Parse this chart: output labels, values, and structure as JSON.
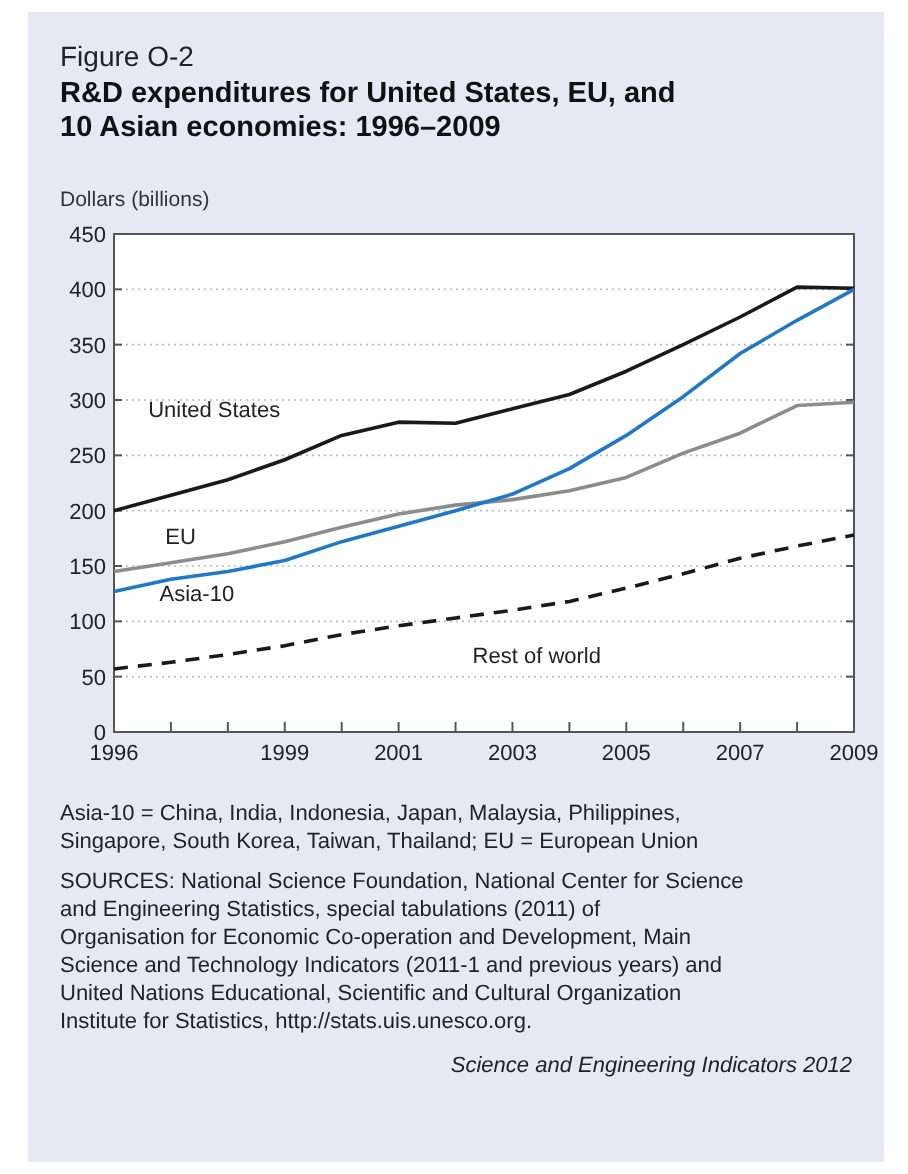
{
  "chart_data": {
    "type": "line",
    "title": "Figure O-2",
    "subtitle": "R&D expenditures for United States, EU, and 10 Asian economies: 1996–2009",
    "ylabel": "Dollars (billions)",
    "x": [
      1996,
      1997,
      1998,
      1999,
      2000,
      2001,
      2002,
      2003,
      2004,
      2005,
      2006,
      2007,
      2008,
      2009
    ],
    "xlim": [
      1996,
      2009
    ],
    "xticks": [
      1996,
      {
        "value": 1997,
        "label": null
      },
      {
        "value": 1998,
        "label": null
      },
      1999,
      {
        "value": 2000,
        "label": null
      },
      2001,
      {
        "value": 2002,
        "label": null
      },
      2003,
      {
        "value": 2004,
        "label": null
      },
      2005,
      {
        "value": 2006,
        "label": null
      },
      2007,
      {
        "value": 2008,
        "label": null
      },
      2009
    ],
    "ylim": [
      0,
      450
    ],
    "yticks": [
      0,
      50,
      100,
      150,
      200,
      250,
      300,
      350,
      400,
      450
    ],
    "grid": "y",
    "legend": false,
    "marker": "none",
    "series": [
      {
        "name": "United States",
        "color": "#1a1a1a",
        "values": [
          200,
          214,
          228,
          246,
          268,
          280,
          279,
          292,
          305,
          326,
          350,
          375,
          402,
          401
        ]
      },
      {
        "name": "EU",
        "color": "#8c8c8c",
        "values": [
          145,
          153,
          161,
          172,
          185,
          197,
          205,
          210,
          218,
          230,
          252,
          270,
          295,
          298
        ]
      },
      {
        "name": "Asia-10",
        "color": "#1f78c8",
        "values": [
          127,
          138,
          145,
          155,
          172,
          186,
          200,
          215,
          238,
          268,
          303,
          342,
          372,
          400
        ]
      },
      {
        "name": "Rest of world",
        "color": "#1a1a1a",
        "line_style": "dashed",
        "values": [
          57,
          63,
          70,
          78,
          88,
          96,
          103,
          110,
          118,
          130,
          143,
          157,
          168,
          178
        ]
      }
    ],
    "annotations": [
      "Asia-10 = China, India, Indonesia, Japan, Malaysia, Philippines, Singapore, South Korea, Taiwan, Thailand; EU = European Union",
      "SOURCES: National Science Foundation, National Center for Science and Engineering Statistics, special tabulations (2011) of Organisation for Economic Co-operation and Development, Main Science and Technology Indicators (2011-1 and previous years) and United Nations Educational, Scientific and Cultural Organization Institute for Statistics, http://stats.uis.unesco.org.",
      "Science and Engineering Indicators 2012"
    ]
  }
}
